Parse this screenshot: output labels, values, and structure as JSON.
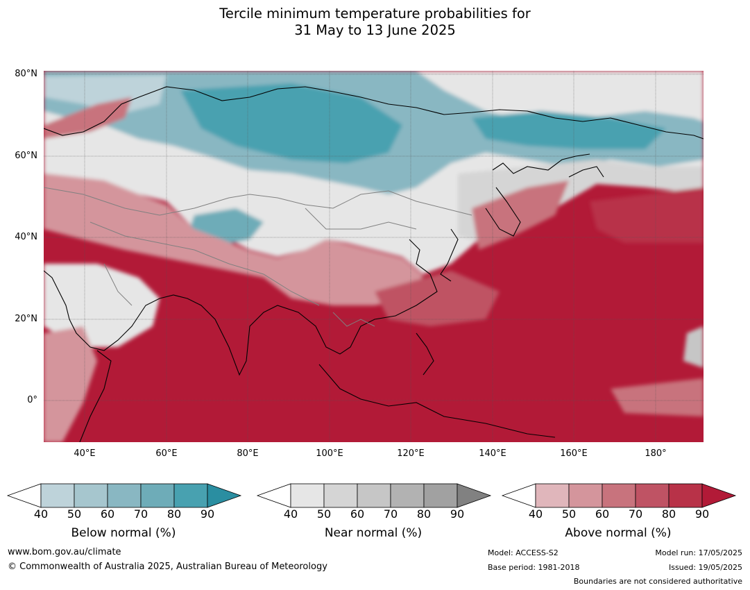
{
  "title_line1": "Tercile minimum temperature probabilities for",
  "title_line2": "31 May to 13 June 2025",
  "lat_labels": [
    "80°N",
    "60°N",
    "40°N",
    "20°N",
    "0°"
  ],
  "lon_labels": [
    "40°E",
    "60°E",
    "80°E",
    "100°E",
    "120°E",
    "140°E",
    "160°E",
    "180°"
  ],
  "colorbars": [
    {
      "title": "Below normal (%)",
      "ticks": [
        "40",
        "50",
        "60",
        "70",
        "80",
        "90"
      ],
      "colors": [
        "#bed3da",
        "#a6c6ce",
        "#89b7c2",
        "#6eacb8",
        "#48a1b0",
        "#2a8ea1"
      ]
    },
    {
      "title": "Near normal (%)",
      "ticks": [
        "40",
        "50",
        "60",
        "70",
        "80",
        "90"
      ],
      "colors": [
        "#e6e6e6",
        "#d5d5d5",
        "#c6c6c6",
        "#b2b2b2",
        "#a1a1a1",
        "#818181"
      ]
    },
    {
      "title": "Above normal (%)",
      "ticks": [
        "40",
        "50",
        "60",
        "70",
        "80",
        "90"
      ],
      "colors": [
        "#e0b6bb",
        "#d4959c",
        "#c8737d",
        "#bf5364",
        "#b83248",
        "#b21a37"
      ]
    }
  ],
  "footer": {
    "website": "www.bom.gov.au/climate",
    "copyright": "© Commonwealth of Australia 2025, Australian Bureau of Meteorology",
    "model": "Model: ACCESS-S2",
    "base_period": "Base period: 1981-2018",
    "model_run": "Model run: 17/05/2025",
    "issued": "Issued: 19/05/2025",
    "disclaimer": "Boundaries are not considered authoritative"
  }
}
